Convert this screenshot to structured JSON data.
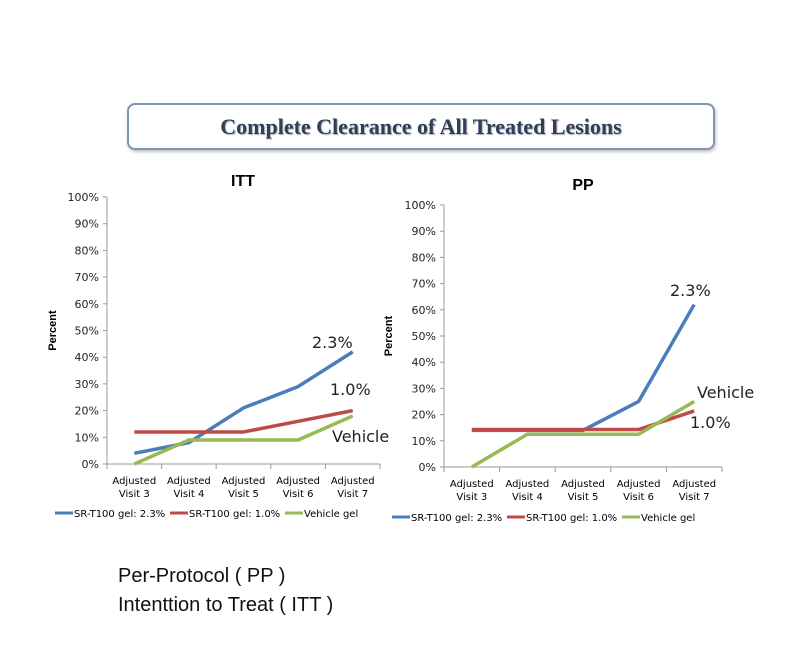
{
  "title": "Complete Clearance of All Treated Lesions",
  "footnotes": [
    "Per-Protocol ( PP )",
    "Intenttion to Treat ( ITT )"
  ],
  "chart_data": [
    {
      "type": "line",
      "title": "ITT",
      "ylabel": "Percent",
      "xlabel": "",
      "ylim": [
        0,
        100
      ],
      "yticks": [
        "0%",
        "10%",
        "20%",
        "30%",
        "40%",
        "50%",
        "60%",
        "70%",
        "80%",
        "90%",
        "100%"
      ],
      "categories": [
        [
          "Adjusted",
          "Visit 3"
        ],
        [
          "Adjusted",
          "Visit 4"
        ],
        [
          "Adjusted",
          "Visit 5"
        ],
        [
          "Adjusted",
          "Visit 6"
        ],
        [
          "Adjusted",
          "Visit 7"
        ]
      ],
      "series": [
        {
          "name": "SR-T100 gel: 2.3%",
          "color": "#4a7ebb",
          "values": [
            4,
            8,
            21,
            29,
            42
          ],
          "annotation": "2.3%"
        },
        {
          "name": "SR-T100 gel: 1.0%",
          "color": "#be4b48",
          "values": [
            12,
            12,
            12,
            16,
            20
          ],
          "annotation": "1.0%"
        },
        {
          "name": "Vehicle gel",
          "color": "#98b954",
          "values": [
            0,
            9,
            9,
            9,
            18
          ],
          "annotation": "Vehicle"
        }
      ],
      "legend": "bottom"
    },
    {
      "type": "line",
      "title": "PP",
      "ylabel": "Percent",
      "xlabel": "",
      "ylim": [
        0,
        100
      ],
      "yticks": [
        "0%",
        "10%",
        "20%",
        "30%",
        "40%",
        "50%",
        "60%",
        "70%",
        "80%",
        "90%",
        "100%"
      ],
      "categories": [
        [
          "Adjusted",
          "Visit 3"
        ],
        [
          "Adjusted",
          "Visit 4"
        ],
        [
          "Adjusted",
          "Visit 5"
        ],
        [
          "Adjusted",
          "Visit 6"
        ],
        [
          "Adjusted",
          "Visit 7"
        ]
      ],
      "series": [
        {
          "name": "SR-T100 gel: 2.3%",
          "color": "#4a7ebb",
          "values": [
            14,
            14,
            14,
            25,
            62
          ],
          "annotation": "2.3%"
        },
        {
          "name": "SR-T100 gel: 1.0%",
          "color": "#be4b48",
          "values": [
            14.3,
            14.3,
            14.3,
            14.3,
            21.4
          ],
          "annotation": "1.0%"
        },
        {
          "name": "Vehicle gel",
          "color": "#98b954",
          "values": [
            0,
            12.5,
            12.5,
            12.5,
            25
          ],
          "annotation": "Vehicle"
        }
      ],
      "legend": "bottom"
    }
  ]
}
